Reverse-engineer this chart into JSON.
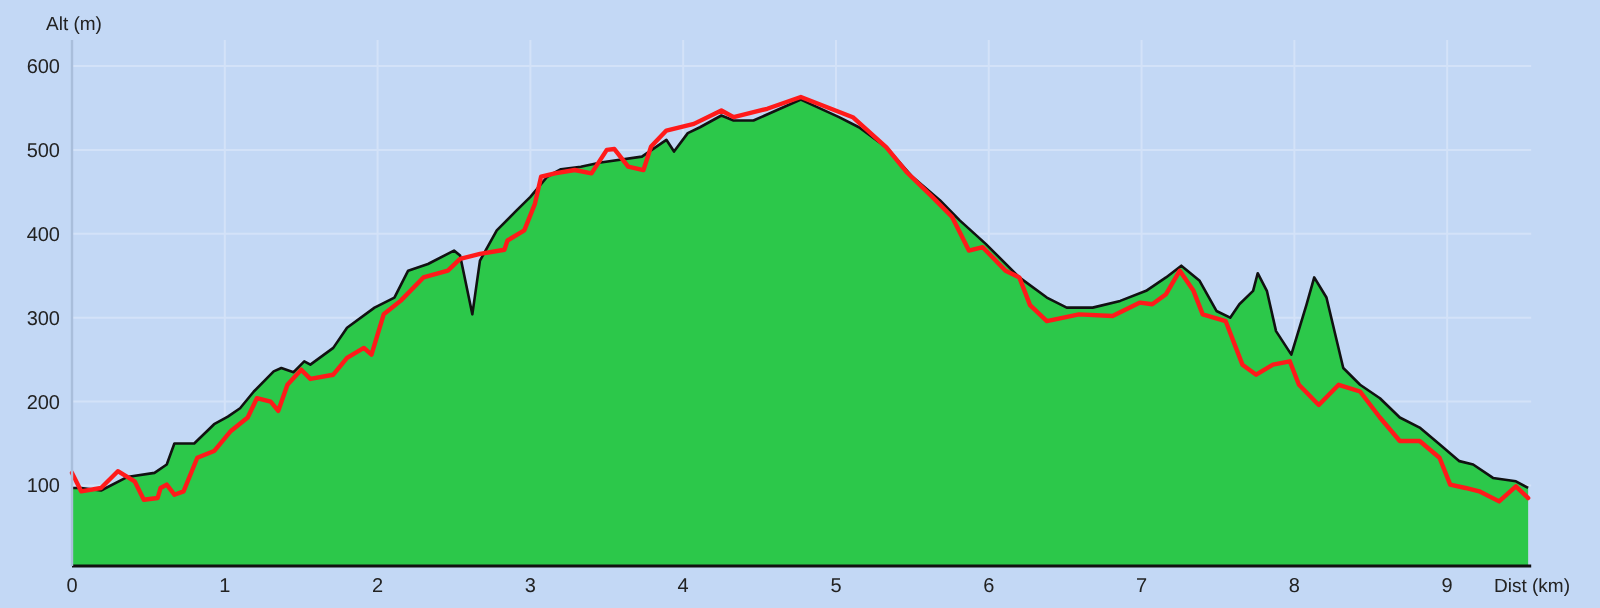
{
  "chart_data": {
    "type": "area",
    "ylabel": "Alt (m)",
    "xlabel": "Dist (km)",
    "xlim": [
      0,
      9.55
    ],
    "ylim": [
      4,
      631
    ],
    "xticks": [
      0,
      1,
      2,
      3,
      4,
      5,
      6,
      7,
      8,
      9
    ],
    "yticks": [
      100,
      200,
      300,
      400,
      500,
      600
    ],
    "grid": true,
    "series": [
      {
        "color": "#2cc84a",
        "x": [
          0,
          0.06,
          0.19,
          0.36,
          0.54,
          0.62,
          0.67,
          0.8,
          0.93,
          1.02,
          1.1,
          1.19,
          1.32,
          1.37,
          1.45,
          1.52,
          1.56,
          1.71,
          1.8,
          1.98,
          2.11,
          2.2,
          2.33,
          2.5,
          2.54,
          2.62,
          2.67,
          2.78,
          2.91,
          3.0,
          3.11,
          3.2,
          3.33,
          3.46,
          3.73,
          3.89,
          3.94,
          4.03,
          4.11,
          4.25,
          4.33,
          4.46,
          4.77,
          5.02,
          5.15,
          5.33,
          5.5,
          5.68,
          5.81,
          5.98,
          6.2,
          6.38,
          6.51,
          6.68,
          6.86,
          7.03,
          7.16,
          7.26,
          7.38,
          7.49,
          7.58,
          7.64,
          7.73,
          7.76,
          7.82,
          7.88,
          7.98,
          8.08,
          8.13,
          8.21,
          8.32,
          8.43,
          8.56,
          8.69,
          8.82,
          8.95,
          9.08,
          9.17,
          9.3,
          9.45,
          9.53
        ],
        "values": [
          97,
          97,
          94,
          110,
          115,
          125,
          150,
          150,
          173,
          182,
          192,
          212,
          236,
          240,
          235,
          248,
          244,
          264,
          288,
          312,
          324,
          356,
          364,
          380,
          374,
          304,
          368,
          404,
          428,
          444,
          468,
          477,
          480,
          485,
          492,
          512,
          498,
          520,
          527,
          541,
          535,
          535,
          560,
          539,
          527,
          503,
          468,
          440,
          416,
          388,
          348,
          324,
          312,
          312,
          320,
          332,
          348,
          362,
          344,
          308,
          300,
          316,
          332,
          353,
          332,
          284,
          256,
          316,
          348,
          324,
          240,
          220,
          204,
          181,
          169,
          149,
          129,
          125,
          109,
          105,
          97
        ]
      },
      {
        "type": "line",
        "color": "#ff1a1a",
        "x": [
          0,
          0.06,
          0.19,
          0.3,
          0.41,
          0.47,
          0.56,
          0.58,
          0.62,
          0.67,
          0.73,
          0.82,
          0.93,
          1.04,
          1.15,
          1.21,
          1.3,
          1.35,
          1.41,
          1.5,
          1.56,
          1.71,
          1.8,
          1.91,
          1.96,
          2.04,
          2.15,
          2.3,
          2.46,
          2.54,
          2.67,
          2.83,
          2.85,
          2.96,
          3.03,
          3.07,
          3.16,
          3.29,
          3.4,
          3.5,
          3.55,
          3.64,
          3.74,
          3.79,
          3.89,
          4.07,
          4.25,
          4.33,
          4.55,
          4.77,
          5.11,
          5.33,
          5.46,
          5.63,
          5.76,
          5.87,
          5.96,
          6.11,
          6.2,
          6.27,
          6.38,
          6.59,
          6.81,
          6.99,
          7.07,
          7.16,
          7.25,
          7.34,
          7.4,
          7.55,
          7.66,
          7.75,
          7.86,
          7.97,
          8.03,
          8.16,
          8.29,
          8.43,
          8.56,
          8.69,
          8.82,
          8.95,
          9.02,
          9.12,
          9.21,
          9.34,
          9.45,
          9.53
        ],
        "values": [
          115,
          93,
          97,
          117,
          105,
          83,
          85,
          97,
          101,
          89,
          93,
          133,
          141,
          165,
          181,
          204,
          200,
          189,
          220,
          238,
          227,
          232,
          252,
          264,
          256,
          304,
          320,
          348,
          356,
          370,
          376,
          381,
          392,
          404,
          436,
          468,
          472,
          476,
          472,
          500,
          501,
          480,
          476,
          504,
          523,
          531,
          547,
          539,
          549,
          563,
          539,
          503,
          474,
          444,
          420,
          380,
          384,
          356,
          348,
          315,
          296,
          304,
          302,
          318,
          316,
          328,
          356,
          332,
          304,
          296,
          244,
          232,
          244,
          248,
          220,
          196,
          220,
          212,
          181,
          153,
          153,
          133,
          101,
          97,
          93,
          81,
          99,
          85
        ]
      }
    ]
  }
}
